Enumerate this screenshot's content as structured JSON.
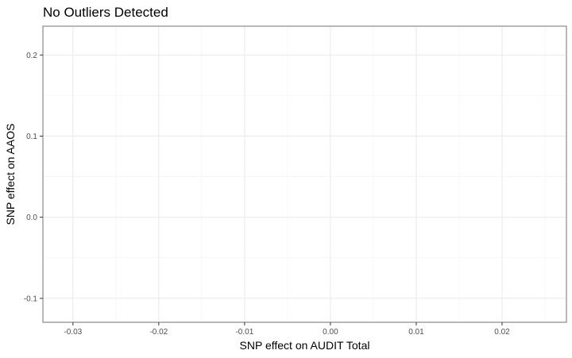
{
  "chart_data": {
    "type": "scatter",
    "title": "No Outliers Detected",
    "xlabel": "SNP effect on AUDIT Total",
    "ylabel": "SNP effect on AAOS",
    "xlim": [
      -0.0335,
      0.0275
    ],
    "ylim": [
      -0.1295,
      0.2355
    ],
    "x_ticks": [
      -0.03,
      -0.02,
      -0.01,
      0.0,
      0.01,
      0.02
    ],
    "x_tick_labels": [
      "-0.03",
      "-0.02",
      "-0.01",
      "0.00",
      "0.01",
      "0.02"
    ],
    "y_ticks": [
      0.2,
      0.1,
      0.0,
      -0.1
    ],
    "y_tick_labels": [
      "0.2",
      "0.1",
      "0.0",
      "-0.1"
    ],
    "series": [],
    "grid": true,
    "theme": "bw"
  }
}
